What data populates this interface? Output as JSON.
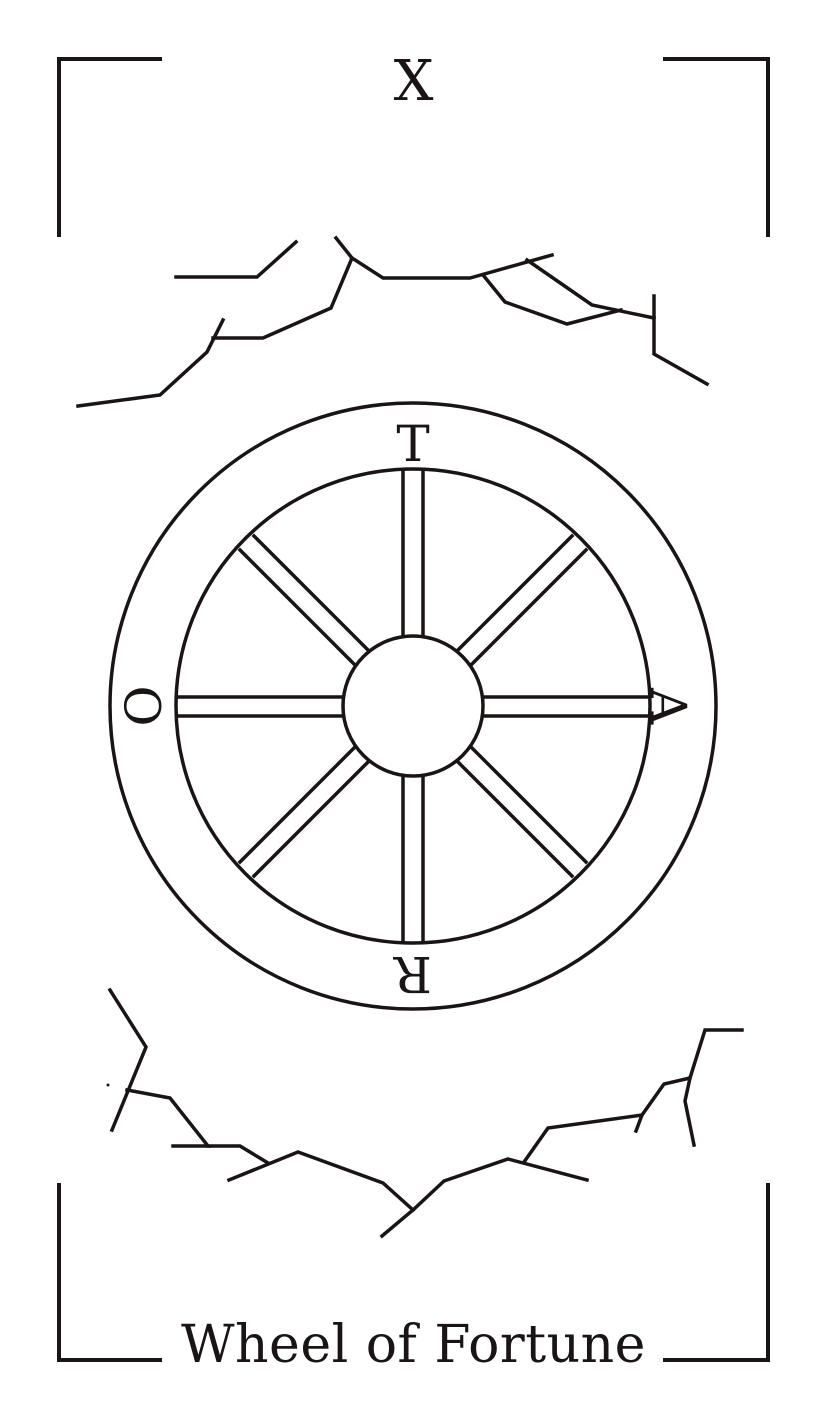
{
  "card": {
    "numeral": "X",
    "title": "Wheel of Fortune",
    "wheel_letters": {
      "top": "T",
      "right": "A",
      "bottom": "R",
      "left": "O"
    },
    "ink_color": "#1a1414",
    "background_color": "#ffffff"
  }
}
